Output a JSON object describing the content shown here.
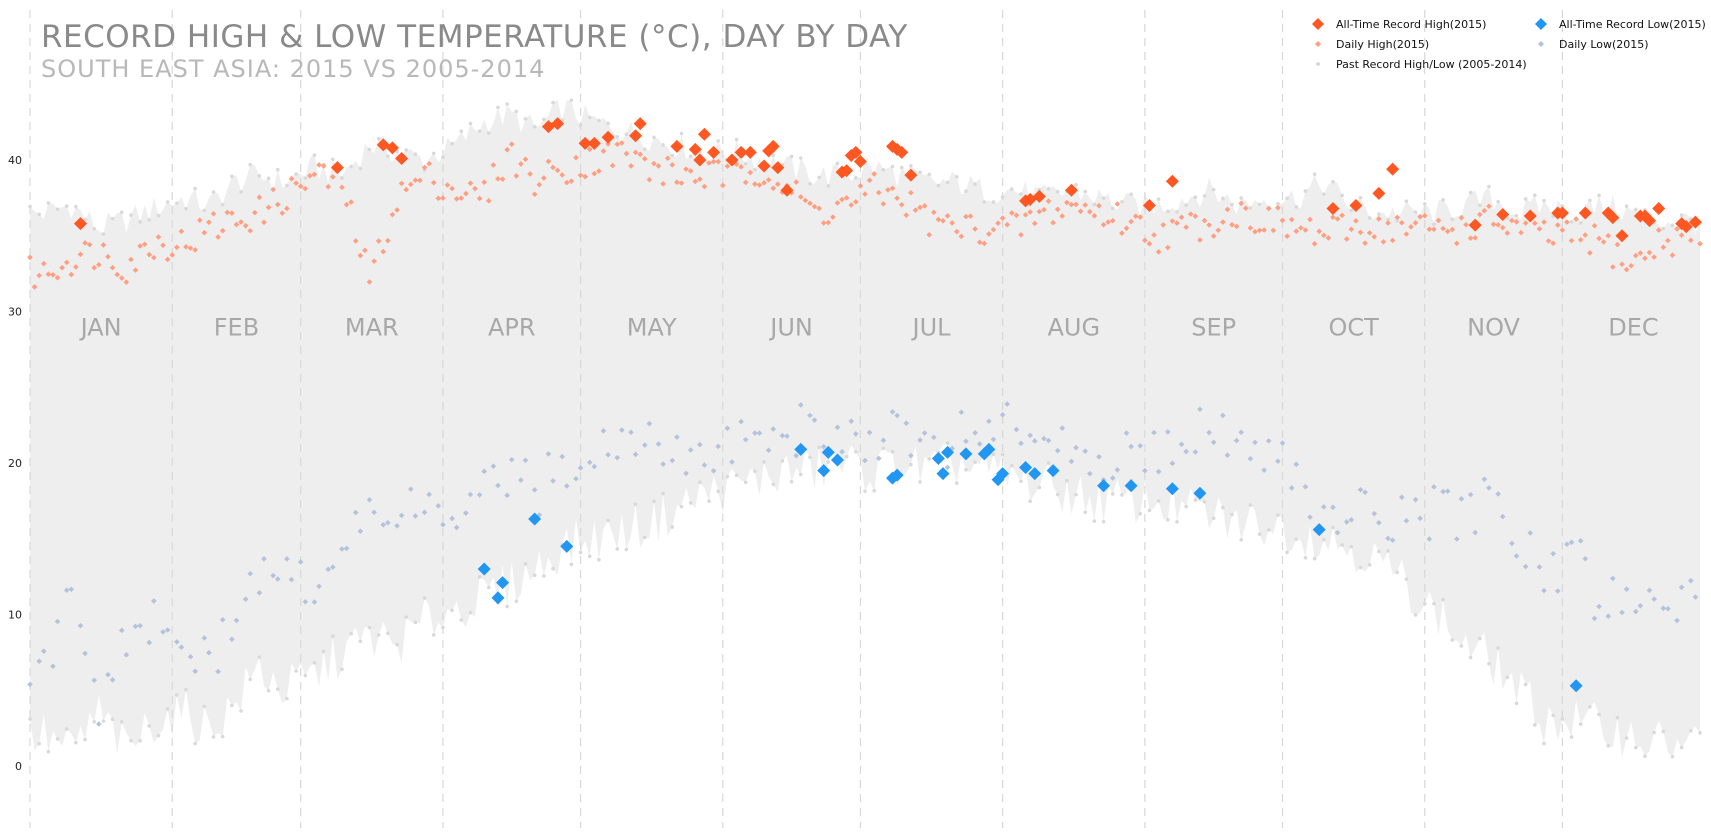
{
  "chart_data": {
    "type": "scatter",
    "title": "RECORD HIGH & LOW TEMPERATURE (°C), DAY BY DAY",
    "subtitle": "SOUTH EAST ASIA: 2015 VS 2005-2014",
    "xlabel": "",
    "ylabel": "",
    "ylim": [
      -4,
      45
    ],
    "yticks": [
      0,
      10,
      20,
      30,
      40
    ],
    "grid": "vertical dashed lines at month starts",
    "legend_position": "top-right",
    "categories": [
      "JAN",
      "FEB",
      "MAR",
      "APR",
      "MAY",
      "JUN",
      "JUL",
      "AUG",
      "SEP",
      "OCT",
      "NOV",
      "DEC"
    ],
    "month_start_days": [
      1,
      32,
      60,
      91,
      121,
      152,
      182,
      213,
      244,
      274,
      305,
      335
    ],
    "colors": {
      "record_high": "#ff5722",
      "daily_high": "#ff9e80",
      "record_low": "#2196f3",
      "daily_low": "#b3c3dc",
      "past_band": "#eeeeee",
      "past_points": "#d9d9d9"
    },
    "legend": [
      {
        "label": "All-Time Record High(2015)",
        "symbol": "diamond-large",
        "color": "#ff5722"
      },
      {
        "label": "All-Time Record Low(2015)",
        "symbol": "diamond-large",
        "color": "#2196f3"
      },
      {
        "label": "Daily High(2015)",
        "symbol": "diamond-small",
        "color": "#ff9e80"
      },
      {
        "label": "Daily Low(2015)",
        "symbol": "diamond-small",
        "color": "#b3c3dc"
      },
      {
        "label": "Past Record High/Low (2005-2014)",
        "symbol": "dot",
        "color": "#d9d9d9"
      }
    ],
    "past_record_high_monthly": [
      {
        "month": "JAN",
        "values": [
          36.5,
          37.0,
          35.5,
          36.0,
          36.8
        ]
      },
      {
        "month": "FEB",
        "values": [
          37.5,
          37.0,
          38.5,
          39.0,
          38.5
        ]
      },
      {
        "month": "MAR",
        "values": [
          39.5,
          39.0,
          41.0,
          40.5,
          40.0
        ]
      },
      {
        "month": "APR",
        "values": [
          41.0,
          42.5,
          43.0,
          42.0,
          43.5
        ]
      },
      {
        "month": "MAY",
        "values": [
          42.5,
          42.0,
          41.5,
          41.0,
          40.5
        ]
      },
      {
        "month": "JUN",
        "values": [
          40.5,
          40.0,
          39.5,
          39.0,
          39.0
        ]
      },
      {
        "month": "JUL",
        "values": [
          39.5,
          39.0,
          38.5,
          38.5,
          38.0
        ]
      },
      {
        "month": "AUG",
        "values": [
          38.0,
          37.5,
          38.0,
          37.5,
          37.0
        ]
      },
      {
        "month": "SEP",
        "values": [
          37.0,
          37.5,
          38.0,
          37.0,
          37.5
        ]
      },
      {
        "month": "OCT",
        "values": [
          37.5,
          38.5,
          37.0,
          36.5,
          36.5
        ]
      },
      {
        "month": "NOV",
        "values": [
          36.5,
          37.0,
          37.5,
          36.5,
          37.0
        ]
      },
      {
        "month": "DEC",
        "values": [
          36.5,
          37.0,
          36.5,
          36.0,
          36.0
        ]
      }
    ],
    "past_record_low_monthly": [
      {
        "month": "JAN",
        "values": [
          2.0,
          1.0,
          3.5,
          1.0,
          3.0
        ]
      },
      {
        "month": "FEB",
        "values": [
          3.5,
          2.5,
          4.0,
          6.5,
          5.0
        ]
      },
      {
        "month": "MAR",
        "values": [
          6.0,
          7.5,
          8.5,
          8.0,
          9.5
        ]
      },
      {
        "month": "APR",
        "values": [
          10.5,
          11.0,
          12.0,
          13.0,
          14.5
        ]
      },
      {
        "month": "MAY",
        "values": [
          15.0,
          15.5,
          16.0,
          17.0,
          18.0
        ]
      },
      {
        "month": "JUN",
        "values": [
          18.5,
          19.0,
          19.5,
          19.5,
          20.0
        ]
      },
      {
        "month": "JUL",
        "values": [
          19.5,
          20.0,
          19.5,
          20.0,
          19.5
        ]
      },
      {
        "month": "AUG",
        "values": [
          19.0,
          18.5,
          18.0,
          17.5,
          17.5
        ]
      },
      {
        "month": "SEP",
        "values": [
          17.5,
          17.0,
          16.5,
          16.0,
          16.0
        ]
      },
      {
        "month": "OCT",
        "values": [
          15.5,
          15.0,
          14.5,
          13.5,
          12.0
        ]
      },
      {
        "month": "NOV",
        "values": [
          10.0,
          8.0,
          7.0,
          5.0,
          3.0
        ]
      },
      {
        "month": "DEC",
        "values": [
          3.0,
          2.5,
          2.0,
          1.5,
          1.5
        ]
      }
    ],
    "daily_high_2015_monthly": [
      {
        "month": "JAN",
        "values": [
          32.5,
          33.5,
          34.0,
          33.0,
          34.5
        ]
      },
      {
        "month": "FEB",
        "values": [
          34.5,
          35.5,
          36.0,
          36.5,
          37.5
        ]
      },
      {
        "month": "MAR",
        "values": [
          39.0,
          38.5,
          32.0,
          37.5,
          39.0
        ]
      },
      {
        "month": "APR",
        "values": [
          38.0,
          37.5,
          40.5,
          38.5,
          39.5
        ]
      },
      {
        "month": "MAY",
        "values": [
          40.0,
          40.5,
          39.5,
          39.0,
          39.0
        ]
      },
      {
        "month": "JUN",
        "values": [
          39.0,
          39.5,
          38.0,
          36.5,
          37.0
        ]
      },
      {
        "month": "JUL",
        "values": [
          38.0,
          37.5,
          36.0,
          35.5,
          35.5
        ]
      },
      {
        "month": "AUG",
        "values": [
          35.5,
          36.5,
          37.0,
          36.5,
          36.0
        ]
      },
      {
        "month": "SEP",
        "values": [
          35.0,
          35.5,
          36.0,
          36.5,
          36.0
        ]
      },
      {
        "month": "OCT",
        "values": [
          35.5,
          35.0,
          35.5,
          35.5,
          35.5
        ]
      },
      {
        "month": "NOV",
        "values": [
          35.5,
          35.5,
          36.0,
          35.5,
          35.0
        ]
      },
      {
        "month": "DEC",
        "values": [
          35.0,
          34.5,
          33.0,
          34.5,
          35.0
        ]
      }
    ],
    "daily_low_2015_monthly": [
      {
        "month": "JAN",
        "values": [
          6.0,
          11.0,
          4.0,
          8.0,
          10.0
        ]
      },
      {
        "month": "FEB",
        "values": [
          8.0,
          6.5,
          10.0,
          13.0,
          13.0
        ]
      },
      {
        "month": "MAR",
        "values": [
          12.0,
          15.0,
          17.0,
          16.0,
          17.0
        ]
      },
      {
        "month": "APR",
        "values": [
          16.0,
          18.0,
          19.0,
          18.0,
          20.0
        ]
      },
      {
        "month": "MAY",
        "values": [
          21.0,
          21.5,
          21.0,
          20.5,
          21.0
        ]
      },
      {
        "month": "JUN",
        "values": [
          21.5,
          22.0,
          22.0,
          22.5,
          21.5
        ]
      },
      {
        "month": "JUL",
        "values": [
          22.0,
          22.5,
          21.5,
          21.5,
          22.0
        ]
      },
      {
        "month": "AUG",
        "values": [
          22.5,
          22.0,
          21.5,
          20.5,
          21.0
        ]
      },
      {
        "month": "SEP",
        "values": [
          21.0,
          22.0,
          22.5,
          22.0,
          21.0
        ]
      },
      {
        "month": "OCT",
        "values": [
          19.0,
          16.0,
          17.0,
          16.5,
          16.0
        ]
      },
      {
        "month": "NOV",
        "values": [
          17.0,
          16.0,
          18.0,
          15.0,
          12.0
        ]
      },
      {
        "month": "DEC",
        "values": [
          14.0,
          10.0,
          12.0,
          9.0,
          11.0
        ]
      }
    ],
    "record_high_2015": [
      {
        "day": 12,
        "value": 35.8
      },
      {
        "day": 68,
        "value": 39.5
      },
      {
        "day": 78,
        "value": 41.0
      },
      {
        "day": 80,
        "value": 40.8
      },
      {
        "day": 82,
        "value": 40.1
      },
      {
        "day": 114,
        "value": 42.2
      },
      {
        "day": 116,
        "value": 42.4
      },
      {
        "day": 122,
        "value": 41.1
      },
      {
        "day": 124,
        "value": 41.1
      },
      {
        "day": 127,
        "value": 41.5
      },
      {
        "day": 133,
        "value": 41.6
      },
      {
        "day": 134,
        "value": 42.4
      },
      {
        "day": 142,
        "value": 40.9
      },
      {
        "day": 146,
        "value": 40.7
      },
      {
        "day": 147,
        "value": 40.0
      },
      {
        "day": 148,
        "value": 41.7
      },
      {
        "day": 150,
        "value": 40.5
      },
      {
        "day": 154,
        "value": 40.0
      },
      {
        "day": 156,
        "value": 40.5
      },
      {
        "day": 158,
        "value": 40.5
      },
      {
        "day": 161,
        "value": 39.6
      },
      {
        "day": 162,
        "value": 40.6
      },
      {
        "day": 163,
        "value": 40.9
      },
      {
        "day": 164,
        "value": 39.5
      },
      {
        "day": 166,
        "value": 38.0
      },
      {
        "day": 178,
        "value": 39.2
      },
      {
        "day": 179,
        "value": 39.3
      },
      {
        "day": 180,
        "value": 40.3
      },
      {
        "day": 181,
        "value": 40.5
      },
      {
        "day": 182,
        "value": 39.9
      },
      {
        "day": 189,
        "value": 40.9
      },
      {
        "day": 190,
        "value": 40.7
      },
      {
        "day": 191,
        "value": 40.5
      },
      {
        "day": 193,
        "value": 39.0
      },
      {
        "day": 218,
        "value": 37.3
      },
      {
        "day": 219,
        "value": 37.4
      },
      {
        "day": 221,
        "value": 37.6
      },
      {
        "day": 228,
        "value": 38.0
      },
      {
        "day": 245,
        "value": 37.0
      },
      {
        "day": 250,
        "value": 38.6
      },
      {
        "day": 285,
        "value": 36.8
      },
      {
        "day": 290,
        "value": 37.0
      },
      {
        "day": 295,
        "value": 37.8
      },
      {
        "day": 298,
        "value": 39.4
      },
      {
        "day": 316,
        "value": 35.7
      },
      {
        "day": 322,
        "value": 36.4
      },
      {
        "day": 328,
        "value": 36.3
      },
      {
        "day": 334,
        "value": 36.5
      },
      {
        "day": 335,
        "value": 36.5
      },
      {
        "day": 340,
        "value": 36.5
      },
      {
        "day": 345,
        "value": 36.5
      },
      {
        "day": 346,
        "value": 36.2
      },
      {
        "day": 348,
        "value": 35.0
      },
      {
        "day": 352,
        "value": 36.3
      },
      {
        "day": 353,
        "value": 36.3
      },
      {
        "day": 354,
        "value": 36.0
      },
      {
        "day": 356,
        "value": 36.8
      },
      {
        "day": 361,
        "value": 35.8
      },
      {
        "day": 362,
        "value": 35.6
      },
      {
        "day": 364,
        "value": 35.9
      }
    ],
    "record_low_2015": [
      {
        "day": 100,
        "value": 13.0
      },
      {
        "day": 103,
        "value": 11.1
      },
      {
        "day": 104,
        "value": 12.1
      },
      {
        "day": 111,
        "value": 16.3
      },
      {
        "day": 118,
        "value": 14.5
      },
      {
        "day": 169,
        "value": 20.9
      },
      {
        "day": 174,
        "value": 19.5
      },
      {
        "day": 175,
        "value": 20.7
      },
      {
        "day": 177,
        "value": 20.2
      },
      {
        "day": 189,
        "value": 19.0
      },
      {
        "day": 190,
        "value": 19.2
      },
      {
        "day": 199,
        "value": 20.3
      },
      {
        "day": 200,
        "value": 19.3
      },
      {
        "day": 201,
        "value": 20.7
      },
      {
        "day": 205,
        "value": 20.6
      },
      {
        "day": 209,
        "value": 20.6
      },
      {
        "day": 210,
        "value": 20.9
      },
      {
        "day": 212,
        "value": 18.9
      },
      {
        "day": 213,
        "value": 19.3
      },
      {
        "day": 218,
        "value": 19.7
      },
      {
        "day": 220,
        "value": 19.3
      },
      {
        "day": 224,
        "value": 19.5
      },
      {
        "day": 235,
        "value": 18.5
      },
      {
        "day": 241,
        "value": 18.5
      },
      {
        "day": 250,
        "value": 18.3
      },
      {
        "day": 256,
        "value": 18.0
      },
      {
        "day": 282,
        "value": 15.6
      },
      {
        "day": 338,
        "value": 5.3
      }
    ]
  }
}
